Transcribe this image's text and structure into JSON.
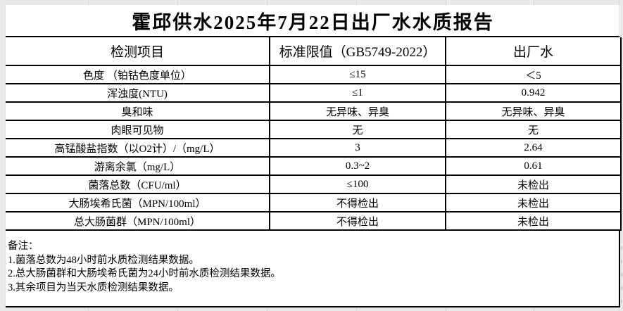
{
  "report": {
    "title": "霍邱供水2025年7月22日出厂水水质报告"
  },
  "table": {
    "headers": [
      "检测项目",
      "标准限值（GB5749-2022）",
      "出厂水"
    ],
    "rows": [
      {
        "item": "色度 （铂钴色度单位）",
        "limit": "≤15",
        "value": "＜5"
      },
      {
        "item": "浑浊度(NTU)",
        "limit": "≤1",
        "value": "0.942"
      },
      {
        "item": "臭和味",
        "limit": "无异味、异臭",
        "value": "无异味、异臭"
      },
      {
        "item": "肉眼可见物",
        "limit": "无",
        "value": "无"
      },
      {
        "item": "高锰酸盐指数（以O2计）/（mg/L）",
        "limit": "3",
        "value": "2.64"
      },
      {
        "item": "游离余氯（mg/L）",
        "limit": "0.3~2",
        "value": "0.61"
      },
      {
        "item": "菌落总数（CFU/ml）",
        "limit": "≤100",
        "value": "未检出"
      },
      {
        "item": "大肠埃希氏菌（MPN/100ml）",
        "limit": "不得检出",
        "value": "未检出"
      },
      {
        "item": "总大肠菌群（MPN/100ml）",
        "limit": "不得检出",
        "value": "未检出"
      }
    ]
  },
  "notes": {
    "heading": "备注：",
    "lines": [
      "1.菌落总数为48小时前水质检测结果数据。",
      "2.总大肠菌群和大肠埃希氏菌为24小时前水质检测结果数据。",
      "3.其余项目为当天水质检测结果数据。"
    ]
  },
  "colors": {
    "border_black": "#000000",
    "sheet_gray": "#e9e9e9",
    "gridline_gray": "#d5d5d5"
  }
}
